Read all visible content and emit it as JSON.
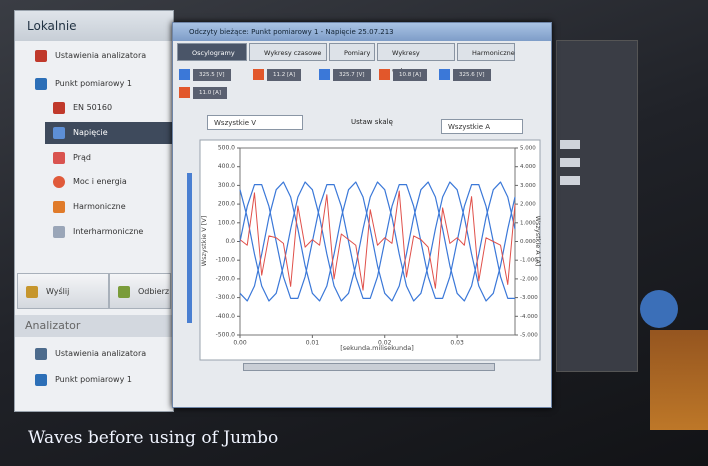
{
  "sidebar": {
    "header": "Lokalnie",
    "items": [
      "Ustawienia analizatora",
      "Punkt pomiarowy 1",
      "EN 50160",
      "Napięcie",
      "Prąd",
      "Moc i energia",
      "Harmoniczne",
      "Interharmoniczne"
    ],
    "buttons": [
      "Wyślij",
      "Odbierz"
    ],
    "section": "Analizator",
    "section_items": [
      "Ustawienia analizatora",
      "Punkt pomiarowy 1"
    ]
  },
  "window": {
    "title": "Odczyty bieżące: Punkt pomiarowy 1 - Napięcie 25.07.213",
    "tabs": [
      "Oscylogramy",
      "Wykresy czasowe",
      "Pomiary",
      "Wykresy wskazowe",
      "Harmoniczne"
    ],
    "channels": [
      "325.5 [V]",
      "11.2 [A]",
      "325.7 [V]",
      "10.8 [A]",
      "325.6 [V]",
      "11.0 [A]"
    ],
    "left_select": "Wszystkie V",
    "scale_button": "Ustaw skalę",
    "right_select": "Wszystkie A"
  },
  "chart_data": {
    "type": "line",
    "x_label": "[sekunda.milisekunda]",
    "y_label": "Wszystkie V [V]",
    "y2_label": "Wszystkie A [A]",
    "x": [
      0,
      0.001,
      0.002,
      0.003,
      0.004,
      0.005,
      0.006,
      0.007,
      0.008,
      0.009,
      0.01,
      0.011,
      0.012,
      0.013,
      0.014,
      0.015,
      0.016,
      0.017,
      0.018,
      0.019,
      0.02,
      0.021,
      0.022,
      0.023,
      0.024,
      0.025,
      0.026,
      0.027,
      0.028,
      0.029,
      0.03,
      0.031,
      0.032,
      0.033,
      0.034,
      0.035,
      0.036,
      0.037,
      0.038
    ],
    "series": [
      {
        "color": "#3b78d8",
        "values": [
          0,
          188,
          304,
          304,
          188,
          0,
          -188,
          -304,
          -304,
          -188,
          0,
          188,
          304,
          304,
          188,
          0,
          -188,
          -304,
          -304,
          -188,
          0,
          188,
          304,
          304,
          188,
          0,
          -188,
          -304,
          -304,
          -188,
          0,
          188,
          304,
          304,
          188,
          0,
          -188,
          -304,
          -304
        ]
      },
      {
        "color": "#3b78d8",
        "values": [
          -277,
          -318,
          -238,
          -67,
          130,
          277,
          318,
          238,
          67,
          -130,
          -277,
          -318,
          -238,
          -67,
          130,
          277,
          318,
          238,
          67,
          -130,
          -277,
          -318,
          -238,
          -67,
          130,
          277,
          318,
          238,
          67,
          -130,
          -277,
          -318,
          -238,
          -67,
          130,
          277,
          318,
          238,
          67
        ]
      },
      {
        "color": "#3b78d8",
        "values": [
          277,
          130,
          -67,
          -238,
          -318,
          -277,
          -130,
          67,
          238,
          318,
          277,
          130,
          -67,
          -238,
          -318,
          -277,
          -130,
          67,
          238,
          318,
          277,
          130,
          -67,
          -238,
          -318,
          -277,
          -130,
          67,
          238,
          318,
          277,
          130,
          -67,
          -238,
          -318,
          -277,
          -130,
          67,
          238
        ]
      },
      {
        "color": "#e0504a",
        "axis": "y2",
        "values": [
          0.1,
          -0.2,
          2.6,
          -1.8,
          0.3,
          0.2,
          -0.1,
          -2.4,
          1.9,
          -0.3,
          0.1,
          -0.2,
          2.5,
          -2.0,
          0.4,
          0.1,
          -0.2,
          -2.6,
          1.7,
          -0.2,
          0.2,
          -0.1,
          2.7,
          -1.9,
          0.3,
          0.1,
          -0.3,
          -2.5,
          1.8,
          -0.1,
          0.2,
          -0.2,
          2.4,
          -2.1,
          0.2,
          0.0,
          -0.2,
          -2.3,
          2.0
        ]
      }
    ],
    "xlim": [
      0,
      0.038
    ],
    "xticks": [
      {
        "value": 0,
        "label": "0.00"
      },
      0.01,
      0.02,
      0.03
    ],
    "ylim": [
      -500,
      500
    ],
    "yticks": [
      {
        "value": 500,
        "label": "500.0"
      },
      {
        "value": 400,
        "label": "400.0"
      },
      {
        "value": 300,
        "label": "300.0"
      },
      {
        "value": 200,
        "label": "200.0"
      },
      {
        "value": 100,
        "label": "100.0"
      },
      {
        "value": 0,
        "label": "0.0"
      },
      {
        "value": -100,
        "label": "-100.0"
      },
      {
        "value": -200,
        "label": "-200.0"
      },
      {
        "value": -300,
        "label": "-300.0"
      },
      {
        "value": -400,
        "label": "-400.0"
      },
      {
        "value": -500,
        "label": "-500.0"
      }
    ],
    "y2lim": [
      -5,
      5
    ],
    "y2ticks": [
      {
        "value": 5,
        "label": "5.000"
      },
      {
        "value": 4,
        "label": "4.000"
      },
      {
        "value": 3,
        "label": "3.000"
      },
      {
        "value": 2,
        "label": "2.000"
      },
      {
        "value": 1,
        "label": "1.000"
      },
      {
        "value": 0,
        "label": "0.000"
      },
      {
        "value": -1,
        "label": "-1.000"
      },
      {
        "value": -2,
        "label": "-2.000"
      },
      {
        "value": -3,
        "label": "-3.000"
      },
      {
        "value": -4,
        "label": "-4.000"
      },
      {
        "value": -5,
        "label": "-5.000"
      }
    ],
    "grid": false
  },
  "caption": "Waves before using of Jumbo"
}
